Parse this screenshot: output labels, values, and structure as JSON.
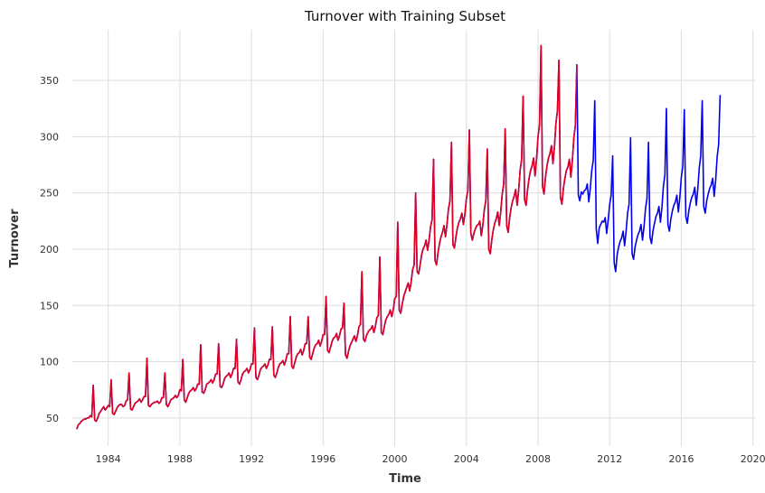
{
  "chart_data": {
    "type": "line",
    "title": "Turnover with Training Subset",
    "xlabel": "Time",
    "ylabel": "Turnover",
    "x_ticks": [
      "1984",
      "1988",
      "1992",
      "1996",
      "2000",
      "2004",
      "2008",
      "2012",
      "2016",
      "2020"
    ],
    "y_ticks": [
      50,
      100,
      150,
      200,
      250,
      300,
      350
    ],
    "xlim": [
      "1982-01",
      "2020-03"
    ],
    "ylim": [
      25,
      395
    ],
    "grid": true,
    "start": "1982-04",
    "series": [
      {
        "color": "#0000ee",
        "values": [
          40,
          44,
          45,
          47,
          48,
          49,
          49,
          50,
          50,
          52,
          51,
          79,
          48,
          47,
          50,
          54,
          56,
          58,
          60,
          57,
          59,
          61,
          60,
          84,
          54,
          53,
          56,
          59,
          61,
          62,
          62,
          60,
          61,
          65,
          66,
          90,
          58,
          57,
          60,
          63,
          64,
          65,
          67,
          64,
          66,
          69,
          69,
          103,
          61,
          60,
          62,
          63,
          64,
          64,
          65,
          63,
          64,
          68,
          68,
          90,
          62,
          60,
          63,
          66,
          67,
          68,
          70,
          68,
          70,
          75,
          74,
          102,
          66,
          64,
          68,
          72,
          74,
          75,
          77,
          74,
          76,
          80,
          80,
          115,
          73,
          72,
          75,
          80,
          81,
          82,
          84,
          81,
          84,
          89,
          89,
          116,
          78,
          77,
          80,
          85,
          87,
          88,
          90,
          86,
          89,
          94,
          94,
          120,
          82,
          80,
          84,
          89,
          91,
          92,
          94,
          90,
          93,
          98,
          98,
          130,
          86,
          84,
          88,
          93,
          95,
          96,
          98,
          94,
          97,
          102,
          102,
          131,
          88,
          86,
          90,
          95,
          98,
          99,
          101,
          97,
          101,
          107,
          107,
          140,
          96,
          94,
          99,
          104,
          107,
          108,
          111,
          106,
          110,
          116,
          116,
          140,
          104,
          102,
          107,
          112,
          115,
          116,
          119,
          114,
          118,
          124,
          124,
          158,
          110,
          108,
          113,
          118,
          121,
          122,
          125,
          119,
          123,
          129,
          130,
          152,
          106,
          103,
          109,
          114,
          117,
          120,
          123,
          118,
          123,
          131,
          133,
          180,
          120,
          118,
          123,
          126,
          128,
          129,
          132,
          126,
          131,
          139,
          141,
          193,
          126,
          124,
          131,
          137,
          140,
          142,
          146,
          140,
          146,
          156,
          158,
          224,
          146,
          143,
          151,
          158,
          162,
          166,
          170,
          163,
          171,
          182,
          186,
          250,
          180,
          178,
          186,
          195,
          200,
          203,
          208,
          199,
          208,
          220,
          226,
          280,
          190,
          186,
          197,
          205,
          211,
          215,
          221,
          211,
          222,
          236,
          243,
          295,
          204,
          201,
          211,
          219,
          224,
          227,
          232,
          222,
          231,
          245,
          252,
          306,
          214,
          208,
          214,
          218,
          221,
          222,
          225,
          212,
          221,
          235,
          243,
          289,
          200,
          196,
          208,
          217,
          223,
          227,
          233,
          221,
          233,
          249,
          258,
          307,
          221,
          215,
          228,
          237,
          243,
          247,
          253,
          239,
          252,
          270,
          280,
          336,
          244,
          239,
          253,
          263,
          270,
          274,
          281,
          265,
          280,
          300,
          311,
          381,
          256,
          249,
          264,
          274,
          281,
          285,
          292,
          276,
          291,
          312,
          323,
          368,
          246,
          240,
          254,
          263,
          270,
          273,
          280,
          264,
          279,
          299,
          310,
          364,
          248,
          243,
          251,
          249,
          252,
          253,
          258,
          242,
          254,
          270,
          279,
          332,
          218,
          205,
          219,
          222,
          225,
          224,
          228,
          214,
          226,
          240,
          248,
          283,
          188,
          180,
          195,
          202,
          207,
          210,
          216,
          203,
          216,
          232,
          240,
          299,
          196,
          191,
          202,
          208,
          213,
          216,
          222,
          208,
          220,
          236,
          245,
          295,
          211,
          205,
          216,
          223,
          229,
          232,
          238,
          224,
          237,
          256,
          266,
          325,
          222,
          216,
          227,
          234,
          239,
          242,
          248,
          233,
          246,
          264,
          274,
          324,
          229,
          223,
          234,
          241,
          246,
          249,
          255,
          239,
          253,
          272,
          283,
          332,
          238,
          232,
          243,
          249,
          254,
          257,
          263,
          247,
          261,
          282,
          293,
          337
        ]
      },
      {
        "color": "#e00020",
        "values": [
          40,
          44,
          45,
          47,
          48,
          49,
          49,
          50,
          50,
          52,
          51,
          79,
          48,
          47,
          50,
          54,
          56,
          58,
          60,
          57,
          59,
          61,
          60,
          84,
          54,
          53,
          56,
          59,
          61,
          62,
          62,
          60,
          61,
          65,
          66,
          90,
          58,
          57,
          60,
          63,
          64,
          65,
          67,
          64,
          66,
          69,
          69,
          103,
          61,
          60,
          62,
          63,
          64,
          64,
          65,
          63,
          64,
          68,
          68,
          90,
          62,
          60,
          63,
          66,
          67,
          68,
          70,
          68,
          70,
          75,
          74,
          102,
          66,
          64,
          68,
          72,
          74,
          75,
          77,
          74,
          76,
          80,
          80,
          115,
          73,
          72,
          75,
          80,
          81,
          82,
          84,
          81,
          84,
          89,
          89,
          116,
          78,
          77,
          80,
          85,
          87,
          88,
          90,
          86,
          89,
          94,
          94,
          120,
          82,
          80,
          84,
          89,
          91,
          92,
          94,
          90,
          93,
          98,
          98,
          130,
          86,
          84,
          88,
          93,
          95,
          96,
          98,
          94,
          97,
          102,
          102,
          131,
          88,
          86,
          90,
          95,
          98,
          99,
          101,
          97,
          101,
          107,
          107,
          140,
          96,
          94,
          99,
          104,
          107,
          108,
          111,
          106,
          110,
          116,
          116,
          140,
          104,
          102,
          107,
          112,
          115,
          116,
          119,
          114,
          118,
          124,
          124,
          158,
          110,
          108,
          113,
          118,
          121,
          122,
          125,
          119,
          123,
          129,
          130,
          152,
          106,
          103,
          109,
          114,
          117,
          120,
          123,
          118,
          123,
          131,
          133,
          180,
          120,
          118,
          123,
          126,
          128,
          129,
          132,
          126,
          131,
          139,
          141,
          193,
          126,
          124,
          131,
          137,
          140,
          142,
          146,
          140,
          146,
          156,
          158,
          224,
          146,
          143,
          151,
          158,
          162,
          166,
          170,
          163,
          171,
          182,
          186,
          250,
          180,
          178,
          186,
          195,
          200,
          203,
          208,
          199,
          208,
          220,
          226,
          280,
          190,
          186,
          197,
          205,
          211,
          215,
          221,
          211,
          222,
          236,
          243,
          295,
          204,
          201,
          211,
          219,
          224,
          227,
          232,
          222,
          231,
          245,
          252,
          306,
          214,
          208,
          214,
          218,
          221,
          222,
          225,
          212,
          221,
          235,
          243,
          289,
          200,
          196,
          208,
          217,
          223,
          227,
          233,
          221,
          233,
          249,
          258,
          307,
          221,
          215,
          228,
          237,
          243,
          247,
          253,
          239,
          252,
          270,
          280,
          336,
          244,
          239,
          253,
          263,
          270,
          274,
          281,
          265,
          280,
          300,
          311,
          381,
          256,
          249,
          264,
          274,
          281,
          285,
          292,
          276,
          291,
          312,
          323,
          368,
          246,
          240,
          254,
          263,
          270,
          273,
          280,
          264,
          279,
          299,
          310,
          364
        ]
      }
    ]
  }
}
